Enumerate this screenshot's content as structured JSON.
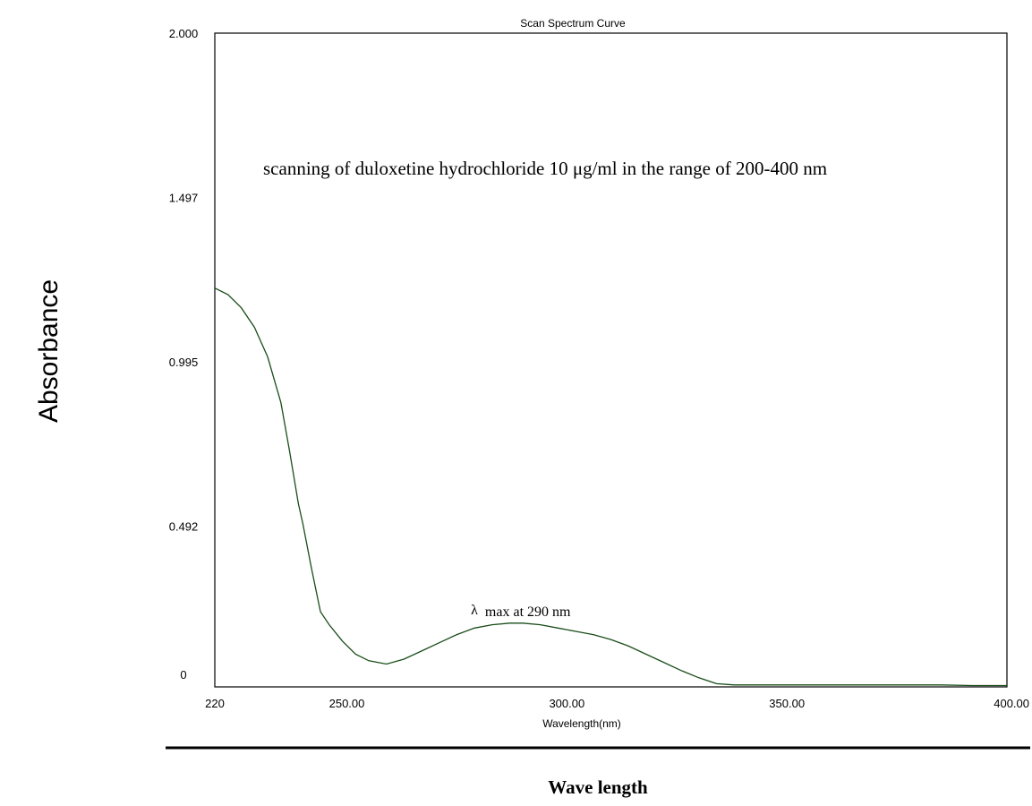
{
  "chart_data": {
    "type": "line",
    "title": "Scan Spectrum Curve",
    "xlabel": "Wavelength(nm)",
    "ylabel": "Absorbance",
    "outer_xlabel": "Wave length",
    "annotation": "scanning of duloxetine hydrochloride 10 μg/ml in the range of 200-400 nm",
    "peak_label": {
      "symbol": "λ",
      "text": "max at 290 nm",
      "x": 290,
      "y": 0.2
    },
    "xlim": [
      220,
      400
    ],
    "ylim": [
      0,
      2.0
    ],
    "x_ticks": [
      {
        "value": 220,
        "label": "220"
      },
      {
        "value": 250,
        "label": "250.00"
      },
      {
        "value": 300,
        "label": "300.00"
      },
      {
        "value": 350,
        "label": "350.00"
      },
      {
        "value": 400,
        "label": "400.00"
      }
    ],
    "y_ticks": [
      {
        "value": 0,
        "label": "0"
      },
      {
        "value": 0.492,
        "label": "0.492"
      },
      {
        "value": 0.995,
        "label": "0.995"
      },
      {
        "value": 1.497,
        "label": "1.497"
      },
      {
        "value": 2.0,
        "label": "2.000"
      }
    ],
    "grid": false,
    "series": [
      {
        "color": "#1a4d1a",
        "x": [
          220,
          223,
          226,
          229,
          232,
          235,
          237,
          239,
          240,
          242,
          244,
          246,
          249,
          252,
          255,
          259,
          263,
          267,
          271,
          275,
          279,
          283,
          287,
          290,
          294,
          298,
          302,
          306,
          310,
          314,
          318,
          322,
          326,
          330,
          334,
          338,
          345,
          355,
          365,
          375,
          385,
          392,
          400
        ],
        "y": [
          1.22,
          1.2,
          1.16,
          1.1,
          1.01,
          0.87,
          0.72,
          0.56,
          0.5,
          0.36,
          0.23,
          0.19,
          0.14,
          0.1,
          0.08,
          0.07,
          0.085,
          0.11,
          0.135,
          0.16,
          0.18,
          0.19,
          0.195,
          0.195,
          0.19,
          0.18,
          0.17,
          0.16,
          0.145,
          0.125,
          0.1,
          0.075,
          0.05,
          0.028,
          0.01,
          0.006,
          0.006,
          0.006,
          0.006,
          0.006,
          0.006,
          0.004,
          0.004
        ]
      }
    ]
  }
}
